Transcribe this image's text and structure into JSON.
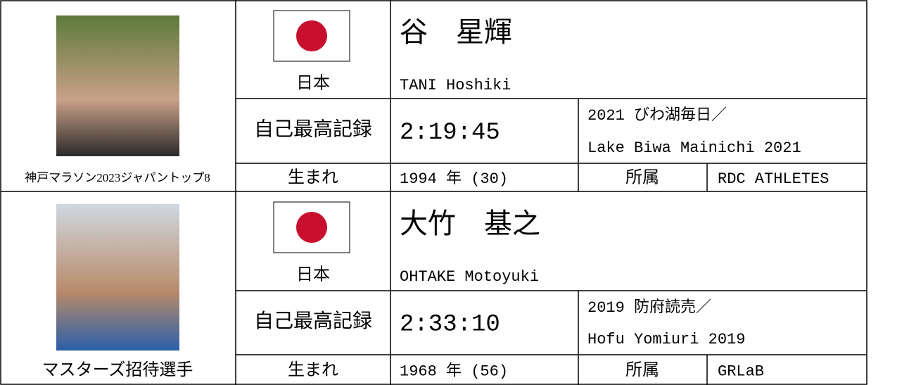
{
  "athletes": [
    {
      "caption": "神戸マラソン2023ジャパントップ8",
      "country": "日本",
      "name": "谷　星輝",
      "name_en": "TANI Hoshiki",
      "record_label": "自己最高記録",
      "record": "2:19:45",
      "race_jp": "2021 びわ湖毎日／",
      "race_en": "Lake Biwa Mainichi 2021",
      "born_label": "生まれ",
      "born": "1994 年 (30)",
      "team_label": "所属",
      "team": "RDC ATHLETES"
    },
    {
      "caption": "マスターズ招待選手",
      "country": "日本",
      "name": "大竹　基之",
      "name_en": "OHTAKE Motoyuki",
      "record_label": "自己最高記録",
      "record": "2:33:10",
      "race_jp": "2019 防府読売／",
      "race_en": "Hofu Yomiuri 2019",
      "born_label": "生まれ",
      "born": "1968 年 (56)",
      "team_label": "所属",
      "team": "GRLaB"
    }
  ]
}
